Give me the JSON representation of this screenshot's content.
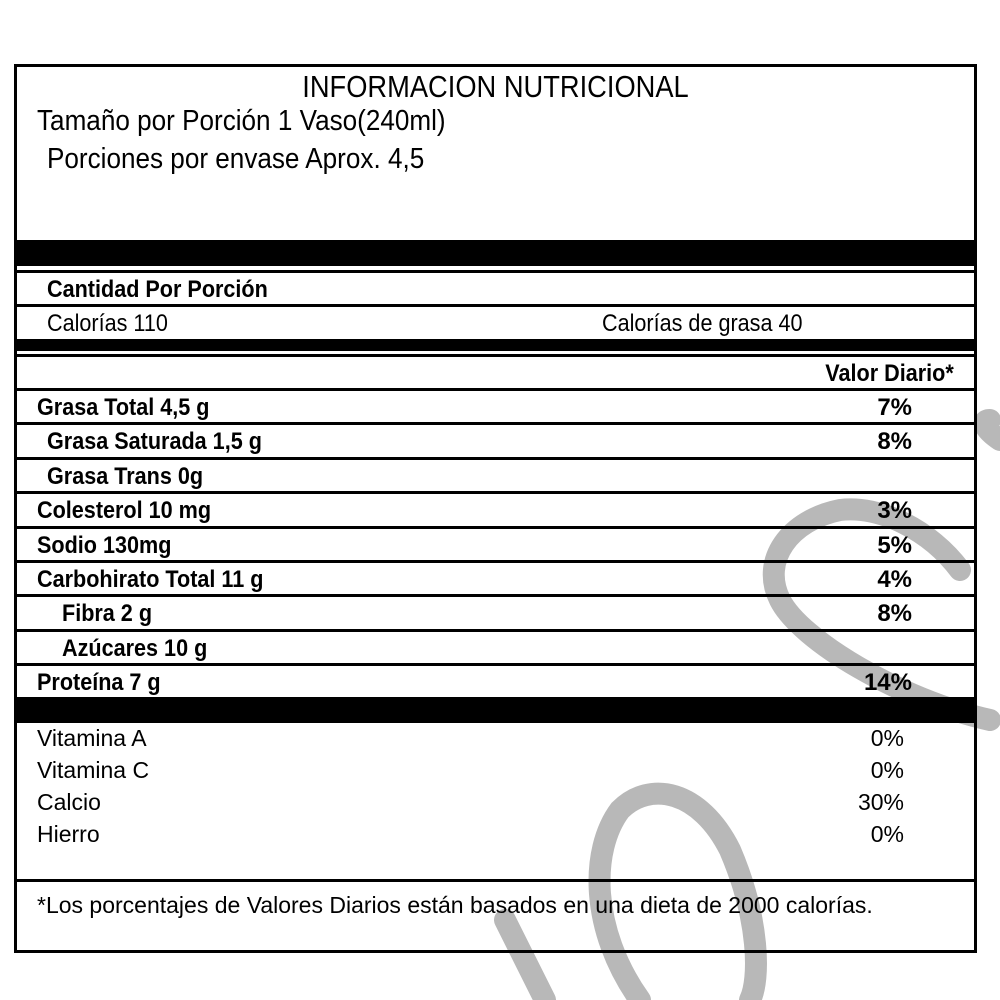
{
  "label": {
    "title": "INFORMACION NUTRICIONAL",
    "serving_size": "Tamaño por  Porción 1 Vaso(240ml)",
    "servings_per_container": "Porciones por envase    Aprox. 4,5",
    "amount_per_serving": "Cantidad Por Porción",
    "calories": "Calorías 110",
    "calories_from_fat": "Calorías  de  grasa  40",
    "daily_value_header": "Valor Diario*",
    "nutrients": [
      {
        "name": "Grasa  Total 4,5 g",
        "dv": "7%",
        "indent": 0
      },
      {
        "name": "Grasa Saturada  1,5 g",
        "dv": "8%",
        "indent": 1
      },
      {
        "name": "Grasa  Trans  0g",
        "dv": "",
        "indent": 1
      },
      {
        "name": "Colesterol   10 mg",
        "dv": "3%",
        "indent": 0
      },
      {
        "name": "Sodio 130mg",
        "dv": "5%",
        "indent": 0
      },
      {
        "name": "Carbohirato Total 11 g",
        "dv": "4%",
        "indent": 0
      },
      {
        "name": "Fibra  2 g",
        "dv": "8%",
        "indent": 2
      },
      {
        "name": "Azúcares 10 g",
        "dv": "",
        "indent": 2
      },
      {
        "name": "Proteína 7 g",
        "dv": "14%",
        "indent": 0
      }
    ],
    "vitamins": [
      {
        "name": "Vitamina A",
        "dv": "0%"
      },
      {
        "name": "Vitamina C",
        "dv": "0%"
      },
      {
        "name": "Calcio",
        "dv": "30%"
      },
      {
        "name": "Hierro",
        "dv": "0%"
      }
    ],
    "footnote": "*Los porcentajes de Valores Diarios están basados en una dieta de 2000 calorías."
  },
  "colors": {
    "watermark": "#b3b3b3",
    "ink": "#000000"
  }
}
